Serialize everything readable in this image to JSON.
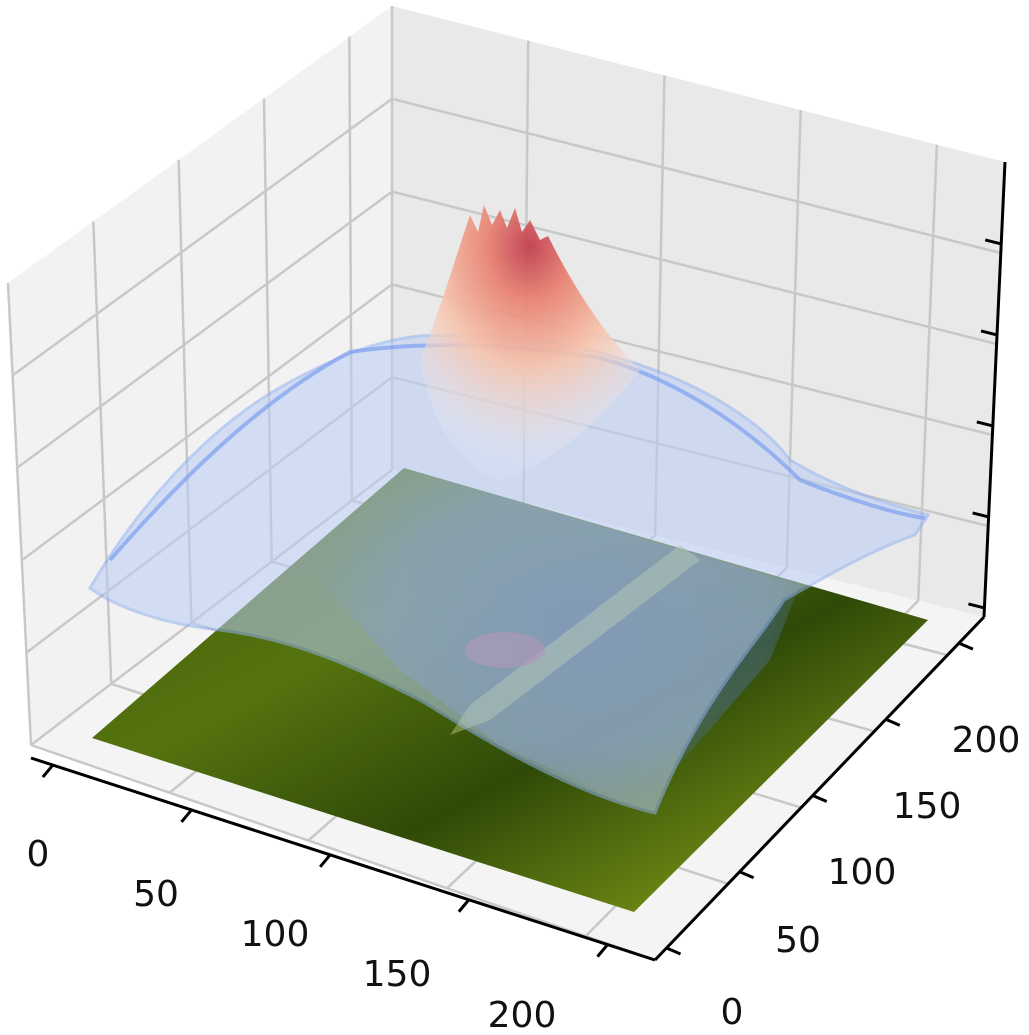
{
  "chart_data": {
    "type": "surface3d",
    "title": "",
    "xlabel": "",
    "ylabel": "",
    "zlabel": "",
    "xlim": [
      0,
      225
    ],
    "ylim": [
      0,
      225
    ],
    "x_ticks": [
      "0",
      "50",
      "100",
      "150",
      "200"
    ],
    "y_ticks": [
      "0",
      "50",
      "100",
      "150",
      "200"
    ],
    "z_ticks_labeled": false,
    "grid": true,
    "layers": [
      {
        "name": "",
        "kind": "image-plane",
        "z": 0,
        "description_colors": [
          "#2d4a06",
          "#5c7a12",
          "#8a9a20",
          "#3b4f6e"
        ]
      },
      {
        "name": "",
        "kind": "surface",
        "colormap": "coolwarm",
        "peak": {
          "x": 110,
          "y": 175,
          "level": 1.0
        },
        "plateau_level": 0.45,
        "region": {
          "x": [
            20,
            225
          ],
          "y": [
            45,
            225
          ]
        }
      }
    ],
    "colors": {
      "pane": "#f2f2f2",
      "grid": "#c8c8c8",
      "low": "#a9c2f5",
      "mid": "#eef1f8",
      "high": "#c1404f"
    }
  }
}
